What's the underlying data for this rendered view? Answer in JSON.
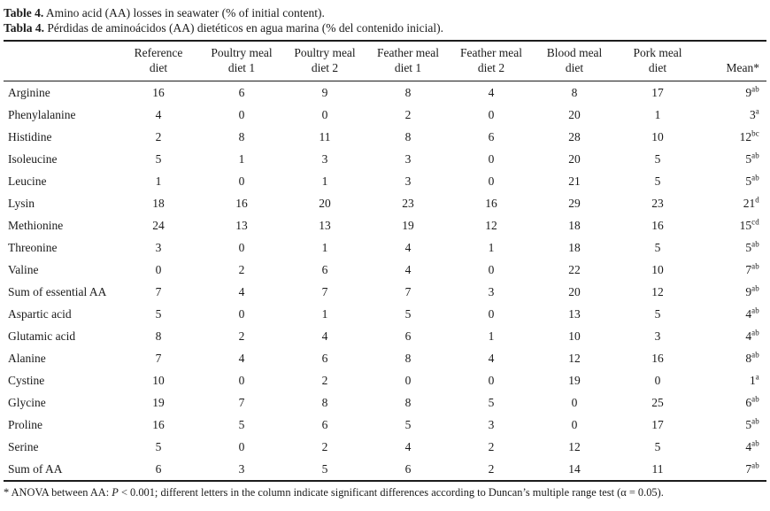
{
  "title": {
    "en_label": "Table 4.",
    "en_text": " Amino acid (AA) losses in seawater (% of initial content).",
    "es_label": "Tabla 4.",
    "es_text": " Pérdidas de aminoácidos (AA) dietéticos en agua marina (% del contenido inicial)."
  },
  "table": {
    "row_header_label": "",
    "columns": [
      {
        "line1": "Reference",
        "line2": "diet"
      },
      {
        "line1": "Poultry meal",
        "line2": "diet 1"
      },
      {
        "line1": "Poultry meal",
        "line2": "diet 2"
      },
      {
        "line1": "Feather meal",
        "line2": "diet 1"
      },
      {
        "line1": "Feather meal",
        "line2": "diet 2"
      },
      {
        "line1": "Blood meal",
        "line2": "diet"
      },
      {
        "line1": "Pork meal",
        "line2": "diet"
      }
    ],
    "mean_column_label": "Mean*",
    "rows": [
      {
        "label": "Arginine",
        "values": [
          16,
          6,
          9,
          8,
          4,
          8,
          17
        ],
        "mean": "9",
        "mean_sup": "ab"
      },
      {
        "label": "Phenylalanine",
        "values": [
          4,
          0,
          0,
          2,
          0,
          20,
          1
        ],
        "mean": "3",
        "mean_sup": "a"
      },
      {
        "label": "Histidine",
        "values": [
          2,
          8,
          11,
          8,
          6,
          28,
          10
        ],
        "mean": "12",
        "mean_sup": "bc"
      },
      {
        "label": "Isoleucine",
        "values": [
          5,
          1,
          3,
          3,
          0,
          20,
          5
        ],
        "mean": "5",
        "mean_sup": "ab"
      },
      {
        "label": "Leucine",
        "values": [
          1,
          0,
          1,
          3,
          0,
          21,
          5
        ],
        "mean": "5",
        "mean_sup": "ab"
      },
      {
        "label": "Lysin",
        "values": [
          18,
          16,
          20,
          23,
          16,
          29,
          23
        ],
        "mean": "21",
        "mean_sup": "d"
      },
      {
        "label": "Methionine",
        "values": [
          24,
          13,
          13,
          19,
          12,
          18,
          16
        ],
        "mean": "15",
        "mean_sup": "cd"
      },
      {
        "label": "Threonine",
        "values": [
          3,
          0,
          1,
          4,
          1,
          18,
          5
        ],
        "mean": "5",
        "mean_sup": "ab"
      },
      {
        "label": "Valine",
        "values": [
          0,
          2,
          6,
          4,
          0,
          22,
          10
        ],
        "mean": "7",
        "mean_sup": "ab"
      },
      {
        "label": "Sum of essential AA",
        "values": [
          7,
          4,
          7,
          7,
          3,
          20,
          12
        ],
        "mean": "9",
        "mean_sup": "ab"
      },
      {
        "label": "Aspartic acid",
        "values": [
          5,
          0,
          1,
          5,
          0,
          13,
          5
        ],
        "mean": "4",
        "mean_sup": "ab"
      },
      {
        "label": "Glutamic acid",
        "values": [
          8,
          2,
          4,
          6,
          1,
          10,
          3
        ],
        "mean": "4",
        "mean_sup": "ab"
      },
      {
        "label": "Alanine",
        "values": [
          7,
          4,
          6,
          8,
          4,
          12,
          16
        ],
        "mean": "8",
        "mean_sup": "ab"
      },
      {
        "label": "Cystine",
        "values": [
          10,
          0,
          2,
          0,
          0,
          19,
          0
        ],
        "mean": "1",
        "mean_sup": "a"
      },
      {
        "label": "Glycine",
        "values": [
          19,
          7,
          8,
          8,
          5,
          0,
          25
        ],
        "mean": "6",
        "mean_sup": "ab"
      },
      {
        "label": "Proline",
        "values": [
          16,
          5,
          6,
          5,
          3,
          0,
          17
        ],
        "mean": "5",
        "mean_sup": "ab"
      },
      {
        "label": "Serine",
        "values": [
          5,
          0,
          2,
          4,
          2,
          12,
          5
        ],
        "mean": "4",
        "mean_sup": "ab"
      },
      {
        "label": "Sum of AA",
        "values": [
          6,
          3,
          5,
          6,
          2,
          14,
          11
        ],
        "mean": "7",
        "mean_sup": "ab"
      }
    ]
  },
  "footnote": {
    "prefix": "* ANOVA between AA: ",
    "p_symbol": "P",
    "suffix": " < 0.001; different letters in the column indicate significant differences according to Duncan’s multiple range test (α = 0.05)."
  }
}
